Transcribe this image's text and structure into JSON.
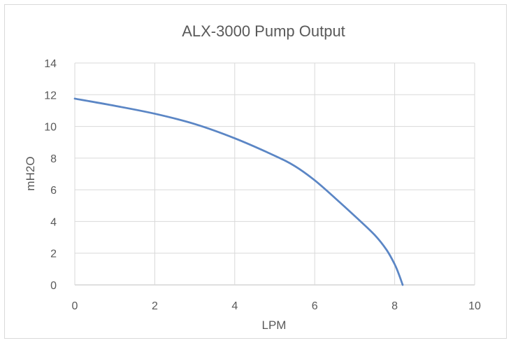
{
  "chart_data": {
    "type": "line",
    "title": "ALX-3000  Pump Output",
    "xlabel": "LPM",
    "ylabel": "mH2O",
    "xlim": [
      0,
      10
    ],
    "ylim": [
      0,
      14
    ],
    "x_ticks": [
      "0",
      "2",
      "4",
      "6",
      "8",
      "10"
    ],
    "y_ticks": [
      "0",
      "2",
      "4",
      "6",
      "8",
      "10",
      "12",
      "14"
    ],
    "grid": true,
    "legend": "none",
    "series": [
      {
        "color": "#5b86c5",
        "points": [
          {
            "x": 0,
            "y": 11.75
          },
          {
            "x": 1,
            "y": 11.3
          },
          {
            "x": 2,
            "y": 10.8
          },
          {
            "x": 3,
            "y": 10.15
          },
          {
            "x": 4,
            "y": 9.25
          },
          {
            "x": 5,
            "y": 8.15
          },
          {
            "x": 5.5,
            "y": 7.5
          },
          {
            "x": 6,
            "y": 6.6
          },
          {
            "x": 6.5,
            "y": 5.5
          },
          {
            "x": 7,
            "y": 4.35
          },
          {
            "x": 7.5,
            "y": 3.15
          },
          {
            "x": 7.8,
            "y": 2.2
          },
          {
            "x": 8.0,
            "y": 1.3
          },
          {
            "x": 8.1,
            "y": 0.7
          },
          {
            "x": 8.2,
            "y": 0
          }
        ]
      }
    ]
  }
}
